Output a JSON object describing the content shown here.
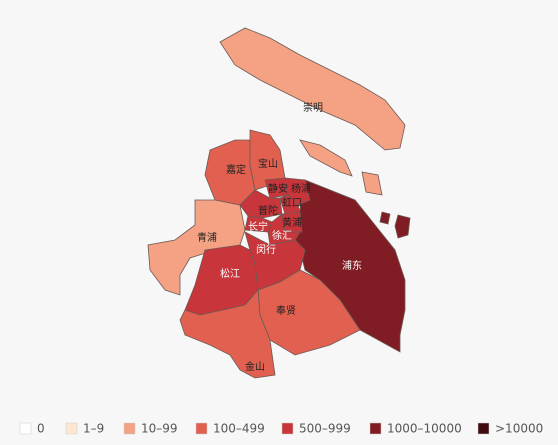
{
  "map": {
    "regions": [
      {
        "name": "崇明",
        "color": "#f4a283"
      },
      {
        "name": "嘉定",
        "color": "#e2604f"
      },
      {
        "name": "宝山",
        "color": "#e2604f"
      },
      {
        "name": "青浦",
        "color": "#f4a283"
      },
      {
        "name": "浦东",
        "color": "#801d24"
      },
      {
        "name": "闵行",
        "color": "#c8353a"
      },
      {
        "name": "松江",
        "color": "#c8353a"
      },
      {
        "name": "奉贤",
        "color": "#e2604f"
      },
      {
        "name": "金山",
        "color": "#e2604f"
      },
      {
        "name": "静安",
        "color": "#c8353a"
      },
      {
        "name": "杨浦",
        "color": "#c8353a"
      },
      {
        "name": "虹口",
        "color": "#c8353a"
      },
      {
        "name": "普陀",
        "color": "#c8353a"
      },
      {
        "name": "黄浦",
        "color": "#c8353a"
      },
      {
        "name": "长宁",
        "color": "#c8353a"
      },
      {
        "name": "徐汇",
        "color": "#c8353a"
      }
    ],
    "legend": [
      {
        "label": "0",
        "color": "#ffffff"
      },
      {
        "label": "1–9",
        "color": "#fde7d3"
      },
      {
        "label": "10–99",
        "color": "#f4a283"
      },
      {
        "label": "100–499",
        "color": "#e2604f"
      },
      {
        "label": "500–999",
        "color": "#c8353a"
      },
      {
        "label": "1000–10000",
        "color": "#801d24"
      },
      {
        "label": ">10000",
        "color": "#3e0b0e"
      }
    ]
  }
}
